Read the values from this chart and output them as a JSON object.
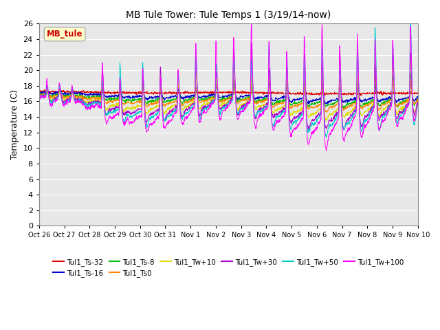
{
  "title": "MB Tule Tower: Tule Temps 1 (3/19/14-now)",
  "ylabel": "Temperature (C)",
  "ylim": [
    0,
    26
  ],
  "yticks": [
    0,
    2,
    4,
    6,
    8,
    10,
    12,
    14,
    16,
    18,
    20,
    22,
    24,
    26
  ],
  "x_tick_labels": [
    "Oct 26",
    "Oct 27",
    "Oct 28",
    "Oct 29",
    "Oct 30",
    "Oct 31",
    "Nov 1",
    "Nov 2",
    "Nov 3",
    "Nov 4",
    "Nov 5",
    "Nov 6",
    "Nov 7",
    "Nov 8",
    "Nov 9",
    "Nov 10"
  ],
  "series": [
    {
      "label": "Tul1_Ts-32",
      "color": "#dd0000",
      "base": 17.2,
      "trend": -0.015,
      "diurnal_amp": 0.2,
      "spike_amp": 0.0
    },
    {
      "label": "Tul1_Ts-16",
      "color": "#0000cc",
      "base": 17.0,
      "trend": -0.04,
      "diurnal_amp": 0.6,
      "spike_amp": 1.5
    },
    {
      "label": "Tul1_Ts-8",
      "color": "#00bb00",
      "base": 16.7,
      "trend": -0.04,
      "diurnal_amp": 0.8,
      "spike_amp": 2.0
    },
    {
      "label": "Tul1_Ts0",
      "color": "#ff8800",
      "base": 16.5,
      "trend": -0.04,
      "diurnal_amp": 1.2,
      "spike_amp": 2.5
    },
    {
      "label": "Tul1_Tw+10",
      "color": "#dddd00",
      "base": 16.2,
      "trend": -0.05,
      "diurnal_amp": 1.8,
      "spike_amp": 4.0
    },
    {
      "label": "Tul1_Tw+30",
      "color": "#aa00cc",
      "base": 16.0,
      "trend": -0.05,
      "diurnal_amp": 2.5,
      "spike_amp": 6.0
    },
    {
      "label": "Tul1_Tw+50",
      "color": "#00cccc",
      "base": 15.8,
      "trend": -0.05,
      "diurnal_amp": 3.0,
      "spike_amp": 7.0
    },
    {
      "label": "Tul1_Tw+100",
      "color": "#ff00ff",
      "base": 15.5,
      "trend": -0.05,
      "diurnal_amp": 4.0,
      "spike_amp": 9.0
    }
  ],
  "annotation_text": "MB_tule",
  "background_color": "#ffffff",
  "plot_bg_color": "#e8e8e8",
  "grid_color": "#ffffff"
}
